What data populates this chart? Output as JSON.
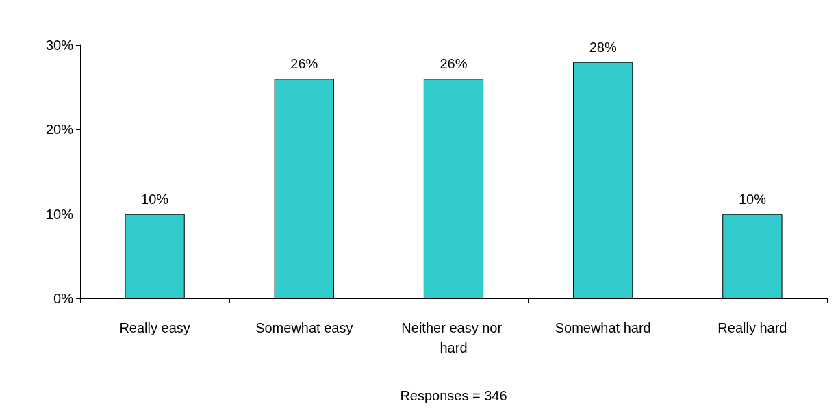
{
  "chart_data": {
    "type": "bar",
    "xlabel": "Responses = 346",
    "categories": [
      "Really easy",
      "Somewhat easy",
      "Neither easy nor hard",
      "Somewhat hard",
      "Really hard"
    ],
    "values": [
      10,
      26,
      26,
      28,
      10
    ],
    "value_labels": [
      "10%",
      "26%",
      "26%",
      "28%",
      "10%"
    ],
    "color": "#33cccc",
    "ylim": [
      0,
      30
    ],
    "yticks": [
      {
        "value": 0,
        "label": "0%"
      },
      {
        "value": 10,
        "label": "10%"
      },
      {
        "value": 20,
        "label": "20%"
      },
      {
        "value": 30,
        "label": "30%"
      }
    ],
    "grid": false
  }
}
